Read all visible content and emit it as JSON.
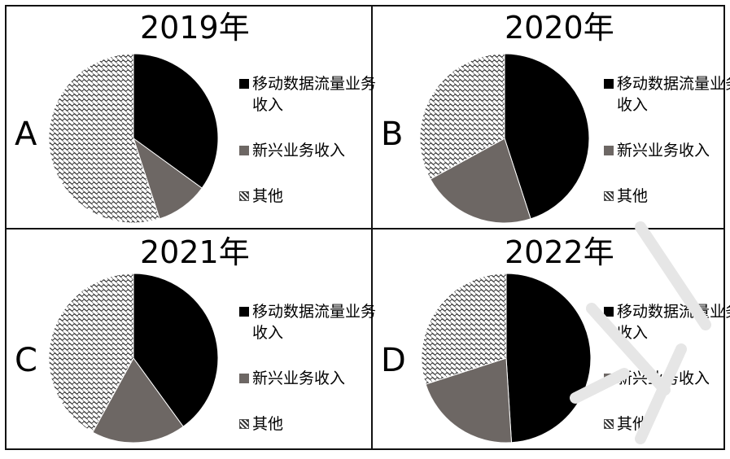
{
  "legend_labels": [
    "移动数据流量业务收入",
    "新兴业务收入",
    "其他"
  ],
  "colors": {
    "mobile_data": "#000000",
    "emerging": "#6d6764",
    "other_pattern": "#ffffff",
    "other_stroke": "#333333"
  },
  "chart_data": [
    {
      "type": "pie",
      "title": "2019年",
      "panel_label": "A",
      "labels": [
        "移动数据流量业务收入",
        "新兴业务收入",
        "其他"
      ],
      "values": [
        35,
        10,
        55
      ]
    },
    {
      "type": "pie",
      "title": "2020年",
      "panel_label": "B",
      "labels": [
        "移动数据流量业务收入",
        "新兴业务收入",
        "其他"
      ],
      "values": [
        45,
        22,
        33
      ]
    },
    {
      "type": "pie",
      "title": "2021年",
      "panel_label": "C",
      "labels": [
        "移动数据流量业务收入",
        "新兴业务收入",
        "其他"
      ],
      "values": [
        40,
        18,
        42
      ]
    },
    {
      "type": "pie",
      "title": "2022年",
      "panel_label": "D",
      "labels": [
        "移动数据流量业务收入",
        "新兴业务收入",
        "其他"
      ],
      "values": [
        49,
        21,
        30
      ]
    }
  ]
}
